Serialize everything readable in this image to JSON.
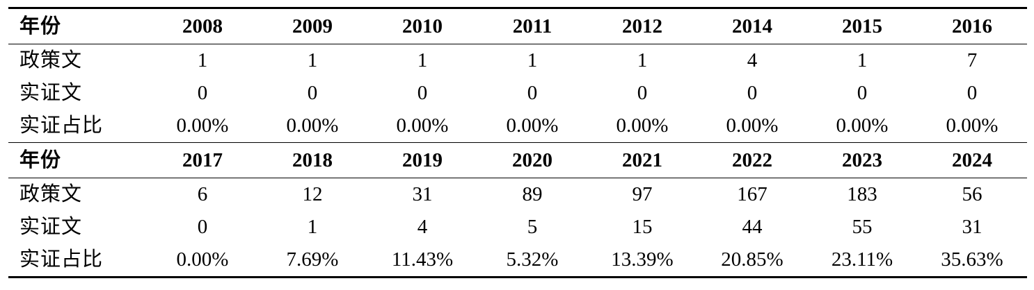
{
  "blocks": [
    {
      "header_label": "年份",
      "years": [
        "2008",
        "2009",
        "2010",
        "2011",
        "2012",
        "2014",
        "2015",
        "2016"
      ],
      "rows": [
        {
          "label": "政策文",
          "values": [
            "1",
            "1",
            "1",
            "1",
            "1",
            "4",
            "1",
            "7"
          ]
        },
        {
          "label": "实证文",
          "values": [
            "0",
            "0",
            "0",
            "0",
            "0",
            "0",
            "0",
            "0"
          ]
        },
        {
          "label": "实证占比",
          "values": [
            "0.00%",
            "0.00%",
            "0.00%",
            "0.00%",
            "0.00%",
            "0.00%",
            "0.00%",
            "0.00%"
          ]
        }
      ]
    },
    {
      "header_label": "年份",
      "years": [
        "2017",
        "2018",
        "2019",
        "2020",
        "2021",
        "2022",
        "2023",
        "2024"
      ],
      "rows": [
        {
          "label": "政策文",
          "values": [
            "6",
            "12",
            "31",
            "89",
            "97",
            "167",
            "183",
            "56"
          ]
        },
        {
          "label": "实证文",
          "values": [
            "0",
            "1",
            "4",
            "5",
            "15",
            "44",
            "55",
            "31"
          ]
        },
        {
          "label": "实证占比",
          "values": [
            "0.00%",
            "7.69%",
            "11.43%",
            "5.32%",
            "13.39%",
            "20.85%",
            "23.11%",
            "35.63%"
          ]
        }
      ]
    }
  ]
}
